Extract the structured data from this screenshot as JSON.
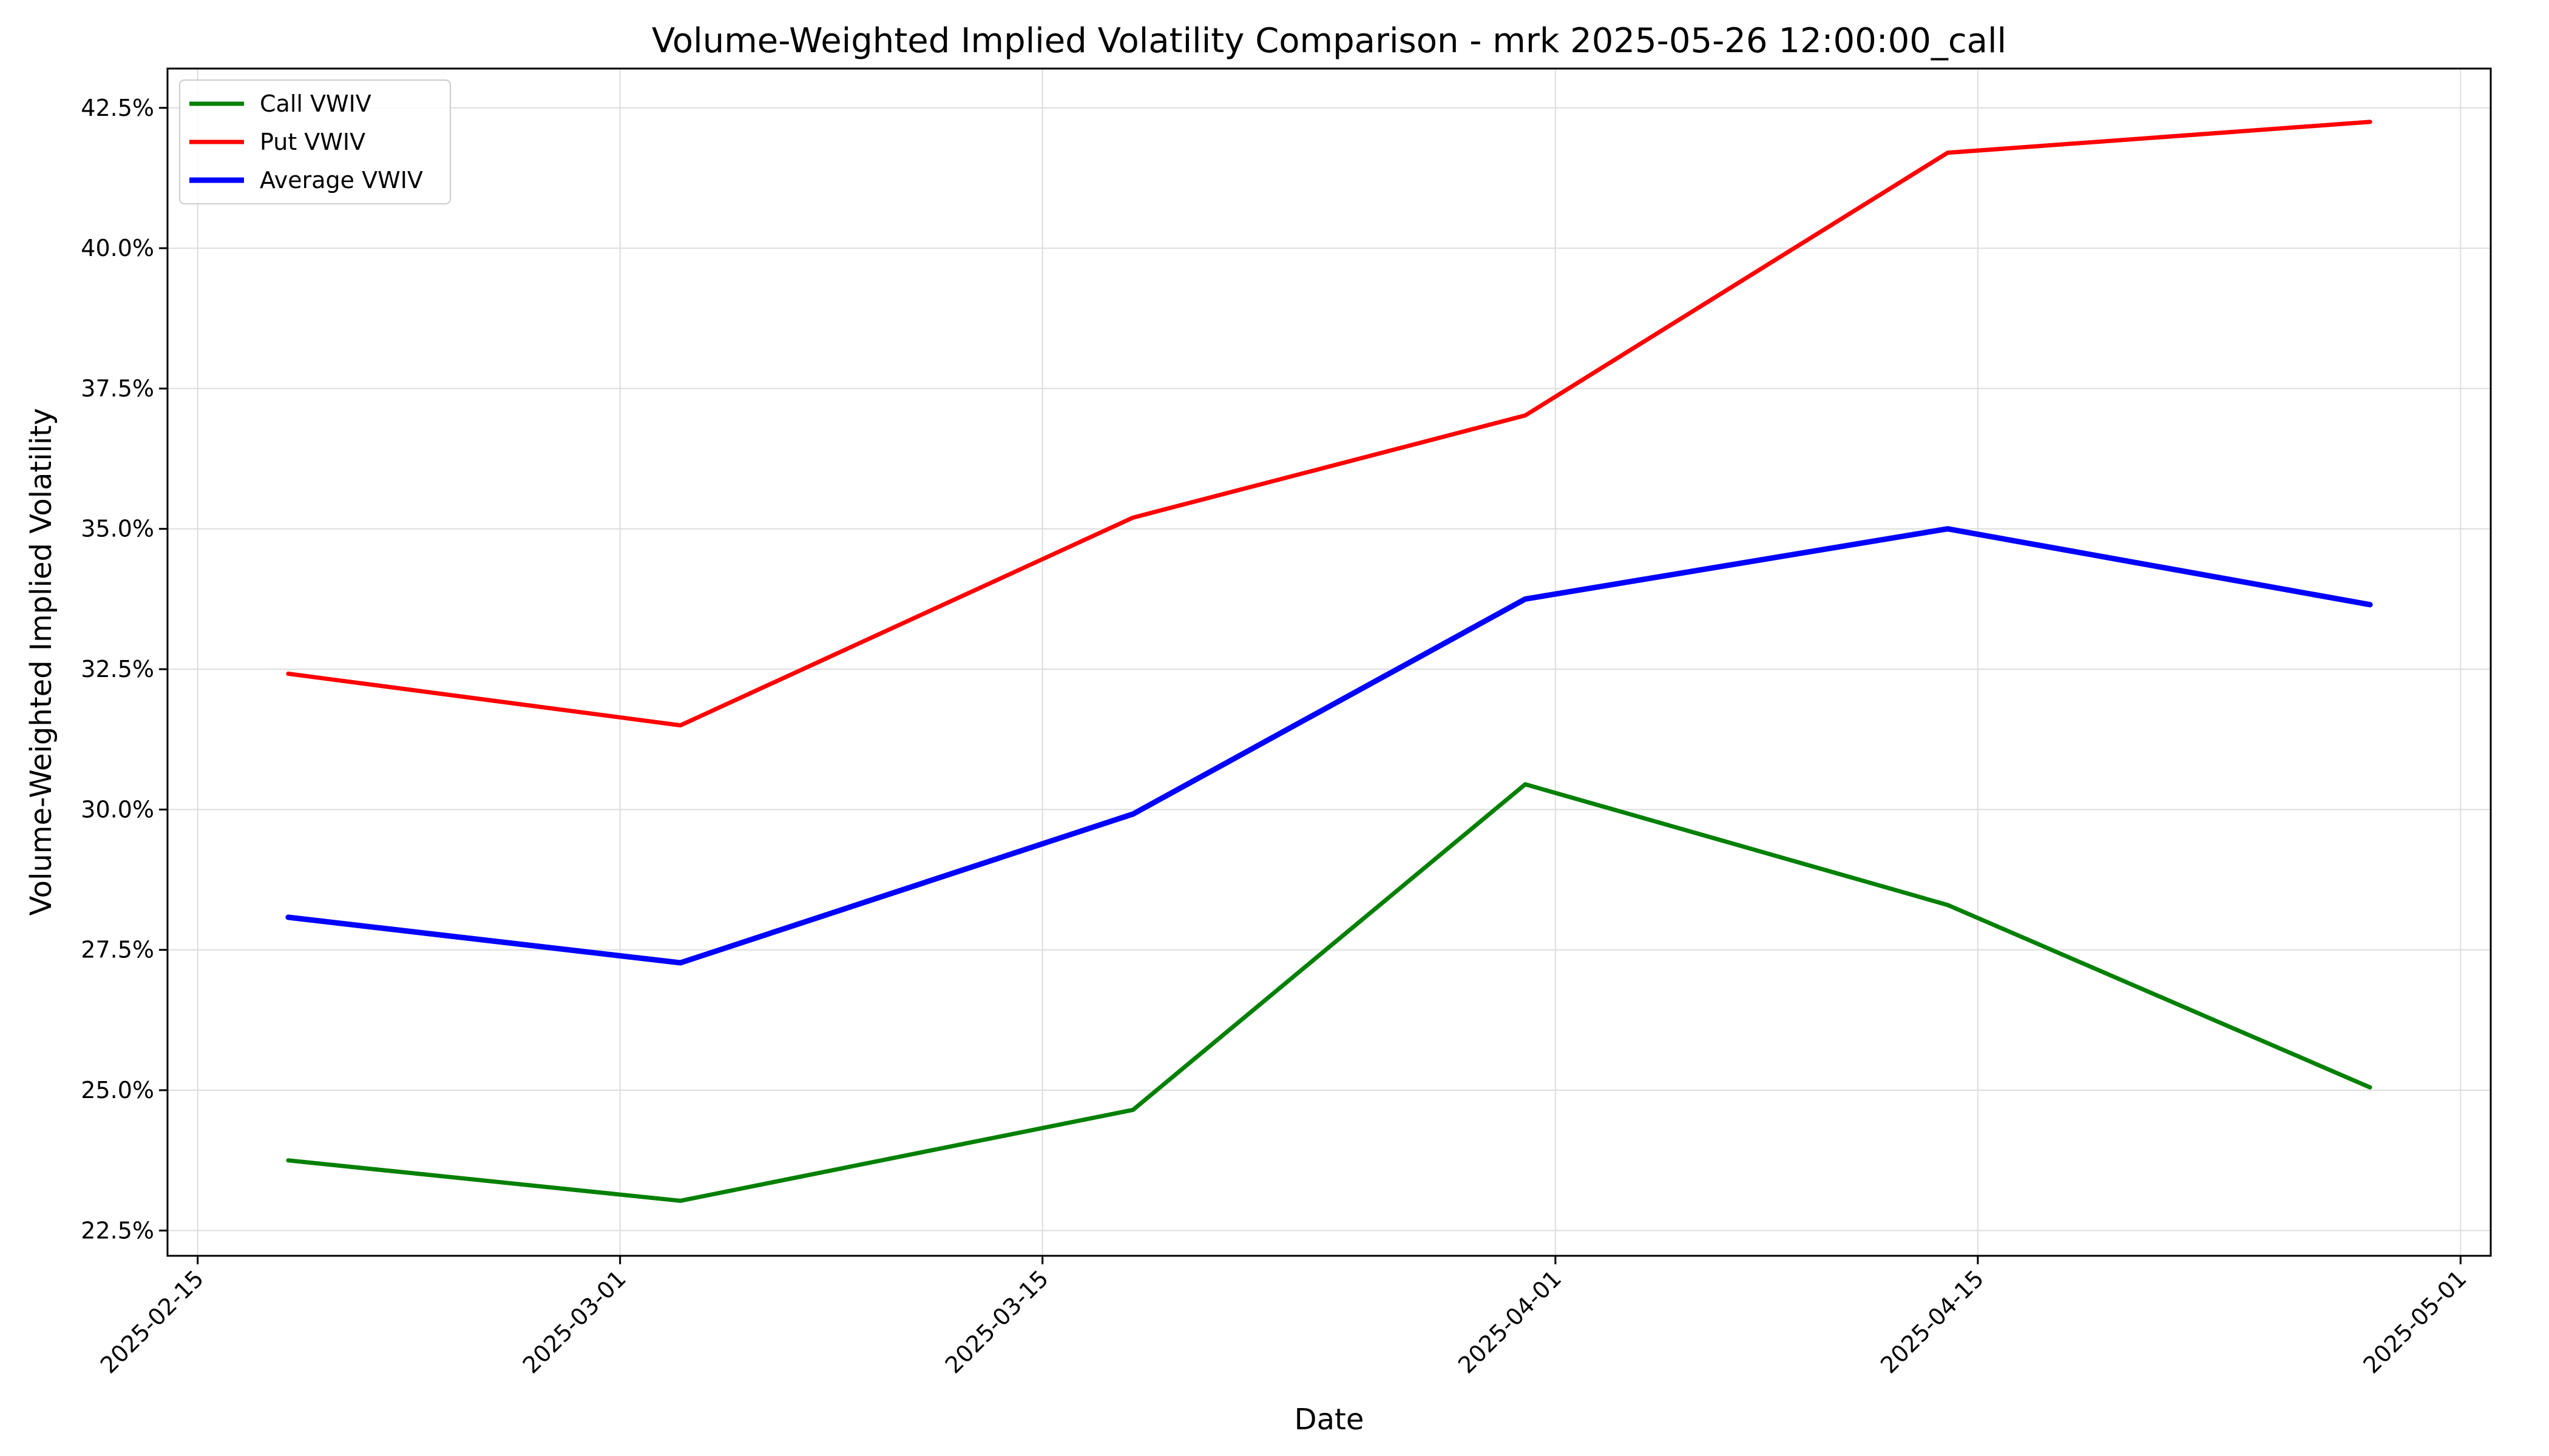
{
  "chart_data": {
    "type": "line",
    "title": "Volume-Weighted Implied Volatility Comparison - mrk 2025-05-26 12:00:00_call",
    "xlabel": "Date",
    "ylabel": "Volume-Weighted Implied Volatility",
    "x": [
      "2025-02-18",
      "2025-03-03",
      "2025-03-18",
      "2025-03-31",
      "2025-04-14",
      "2025-04-28"
    ],
    "x_ticks": [
      "2025-02-15",
      "2025-03-01",
      "2025-03-15",
      "2025-04-01",
      "2025-04-15",
      "2025-05-01"
    ],
    "xlim": [
      "2025-02-14",
      "2025-05-02"
    ],
    "y_ticks": [
      22.5,
      25.0,
      27.5,
      30.0,
      32.5,
      35.0,
      37.5,
      40.0,
      42.5
    ],
    "y_tick_format": "percent",
    "ylim": [
      22.05,
      43.2
    ],
    "grid": true,
    "legend_position": "top-left",
    "series": [
      {
        "name": "Call VWIV",
        "color": "#008000",
        "values": [
          23.75,
          23.03,
          24.65,
          30.45,
          28.3,
          25.05
        ]
      },
      {
        "name": "Put VWIV",
        "color": "#ff0000",
        "values": [
          32.42,
          31.5,
          35.2,
          37.02,
          41.7,
          42.25
        ]
      },
      {
        "name": "Average VWIV",
        "color": "#0000ff",
        "values": [
          28.08,
          27.27,
          29.92,
          33.75,
          35.0,
          33.65
        ]
      }
    ]
  }
}
